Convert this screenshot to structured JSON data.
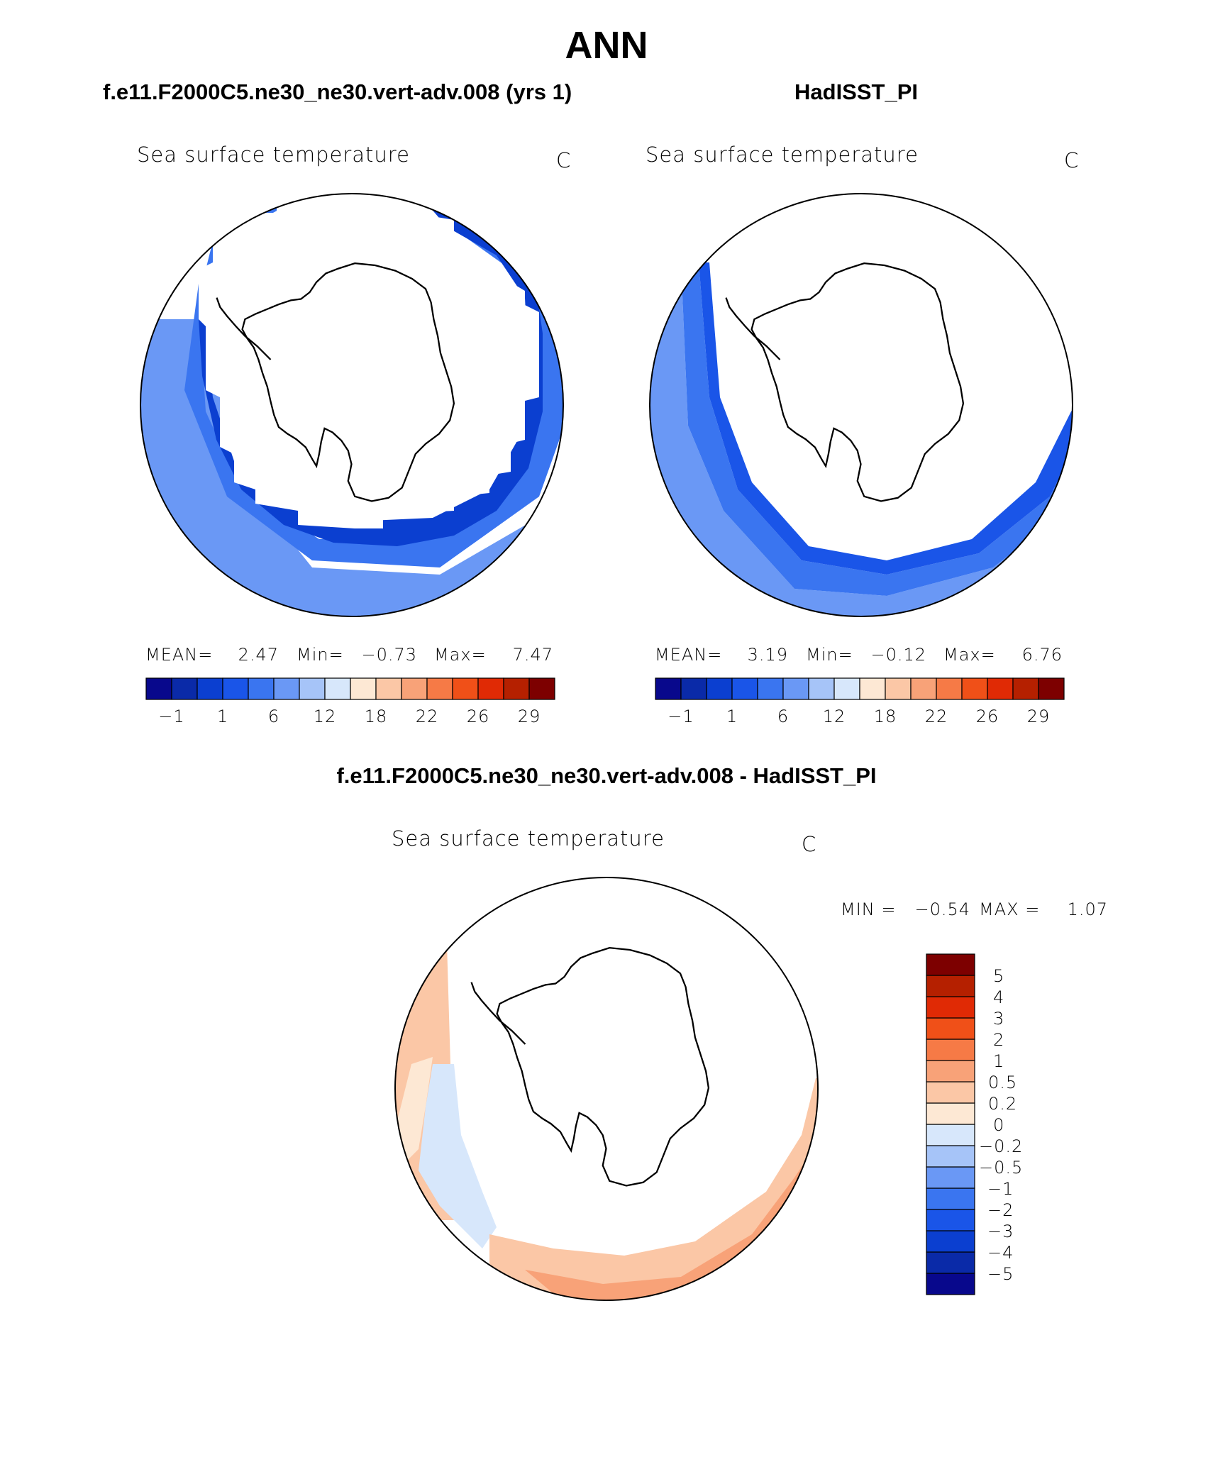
{
  "title": "ANN",
  "colors": {
    "ocean_fill_scale": [
      "#08088c",
      "#0a2aa8",
      "#0b3fd0",
      "#1a55e8",
      "#3a75f0",
      "#6a98f5",
      "#a6c4f8",
      "#d7e7fb",
      "#fde8d4",
      "#fbc7a6",
      "#f8a278",
      "#f67a46",
      "#f05018",
      "#e02a05",
      "#b52000",
      "#7d0000"
    ],
    "diff_scale": [
      "#08088c",
      "#0a2aa8",
      "#0b3fd0",
      "#1a55e8",
      "#3a75f0",
      "#6a98f5",
      "#a6c4f8",
      "#d7e7fb",
      "#fde8d4",
      "#fbc7a6",
      "#f8a278",
      "#f67a46",
      "#f05018",
      "#e02a05",
      "#b52000",
      "#7d0000"
    ]
  },
  "panels": [
    {
      "header": "f.e11.F2000C5.ne30_ne30.vert-adv.008 (yrs 1)",
      "field": "Sea surface temperature",
      "units": "C",
      "stats": {
        "mean_label": "MEAN=",
        "mean": "2.47",
        "min_label": "Min=",
        "min": "−0.73",
        "max_label": "Max=",
        "max": "7.47"
      },
      "colorbar_labels": [
        "−1",
        "1",
        "6",
        "12",
        "18",
        "22",
        "26",
        "29"
      ]
    },
    {
      "header": "HadISST_PI",
      "field": "Sea surface temperature",
      "units": "C",
      "stats": {
        "mean_label": "MEAN=",
        "mean": "3.19",
        "min_label": "Min=",
        "min": "−0.12",
        "max_label": "Max=",
        "max": "6.76"
      },
      "colorbar_labels": [
        "−1",
        "1",
        "6",
        "12",
        "18",
        "22",
        "26",
        "29"
      ]
    }
  ],
  "diff": {
    "header": "f.e11.F2000C5.ne30_ne30.vert-adv.008 - HadISST_PI",
    "field": "Sea surface temperature",
    "units": "C",
    "minmax": {
      "min_label": "MIN =",
      "min": "−0.54",
      "max_label": "MAX =",
      "max": "1.07"
    },
    "colorbar_labels": [
      "5",
      "4",
      "3",
      "2",
      "1",
      "0.5",
      "0.2",
      "0",
      "−0.2",
      "−0.5",
      "−1",
      "−2",
      "−3",
      "−4",
      "−5"
    ]
  }
}
